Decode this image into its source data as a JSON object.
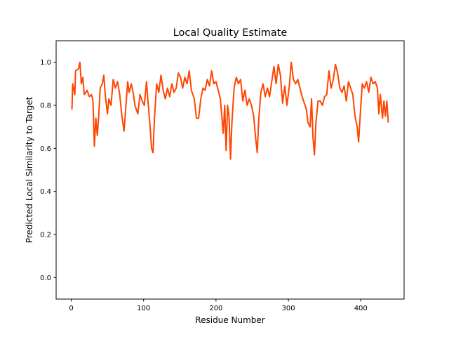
{
  "chart_data": {
    "type": "line",
    "title": "Local Quality Estimate",
    "x_label": "Residue Number",
    "y_label": "Predicted Local Similarity to Target",
    "xlim": [
      -20.85,
      459.85
    ],
    "ylim": [
      -0.1,
      1.1
    ],
    "xticks": [
      0,
      100,
      200,
      300,
      400
    ],
    "yticks": [
      {
        "value": 0,
        "label": "0.0"
      },
      {
        "value": 0.2,
        "label": "0.2"
      },
      {
        "value": 0.4,
        "label": "0.4"
      },
      {
        "value": 0.6,
        "label": "0.6"
      },
      {
        "value": 0.8,
        "label": "0.8"
      },
      {
        "value": 1,
        "label": "1.0"
      }
    ],
    "color": "#ff4500",
    "x": [
      1,
      2,
      5,
      6,
      10,
      12,
      14,
      16,
      18,
      22,
      25,
      28,
      30,
      32,
      34,
      36,
      38,
      40,
      43,
      45,
      47,
      50,
      52,
      55,
      58,
      61,
      64,
      67,
      70,
      73,
      75,
      78,
      80,
      83,
      86,
      88,
      92,
      95,
      98,
      101,
      104,
      106,
      109,
      111,
      113,
      115,
      118,
      121,
      124,
      127,
      130,
      133,
      136,
      139,
      142,
      145,
      148,
      151,
      154,
      157,
      160,
      163,
      166,
      170,
      173,
      176,
      179,
      182,
      185,
      188,
      191,
      194,
      197,
      200,
      203,
      206,
      208,
      210,
      212,
      214,
      216,
      218,
      220,
      222,
      225,
      228,
      231,
      234,
      237,
      240,
      243,
      246,
      249,
      252,
      255,
      257,
      259,
      262,
      265,
      268,
      271,
      274,
      277,
      280,
      283,
      286,
      289,
      292,
      295,
      298,
      301,
      304,
      307,
      310,
      313,
      316,
      319,
      322,
      325,
      327,
      330,
      332,
      334,
      336,
      338,
      341,
      344,
      347,
      350,
      353,
      356,
      359,
      362,
      365,
      368,
      371,
      374,
      377,
      380,
      383,
      386,
      389,
      392,
      395,
      397,
      399,
      402,
      405,
      408,
      411,
      414,
      417,
      420,
      423,
      425,
      427,
      430,
      432,
      434,
      436,
      438
    ],
    "values": [
      0.78,
      0.9,
      0.85,
      0.96,
      0.97,
      1.0,
      0.9,
      0.93,
      0.85,
      0.87,
      0.84,
      0.85,
      0.82,
      0.61,
      0.74,
      0.66,
      0.75,
      0.88,
      0.9,
      0.94,
      0.85,
      0.76,
      0.83,
      0.8,
      0.92,
      0.88,
      0.91,
      0.85,
      0.75,
      0.68,
      0.77,
      0.91,
      0.86,
      0.9,
      0.85,
      0.8,
      0.76,
      0.85,
      0.82,
      0.8,
      0.91,
      0.82,
      0.7,
      0.6,
      0.58,
      0.74,
      0.9,
      0.86,
      0.94,
      0.87,
      0.83,
      0.88,
      0.84,
      0.9,
      0.86,
      0.88,
      0.95,
      0.93,
      0.88,
      0.93,
      0.9,
      0.96,
      0.87,
      0.83,
      0.74,
      0.74,
      0.83,
      0.88,
      0.87,
      0.92,
      0.89,
      0.96,
      0.9,
      0.91,
      0.87,
      0.83,
      0.75,
      0.67,
      0.8,
      0.59,
      0.8,
      0.75,
      0.55,
      0.72,
      0.88,
      0.93,
      0.9,
      0.92,
      0.82,
      0.87,
      0.8,
      0.83,
      0.8,
      0.75,
      0.64,
      0.58,
      0.73,
      0.86,
      0.9,
      0.84,
      0.88,
      0.84,
      0.91,
      0.98,
      0.9,
      0.99,
      0.94,
      0.81,
      0.89,
      0.8,
      0.88,
      1.0,
      0.92,
      0.9,
      0.92,
      0.88,
      0.84,
      0.81,
      0.78,
      0.72,
      0.7,
      0.83,
      0.65,
      0.57,
      0.72,
      0.82,
      0.82,
      0.8,
      0.84,
      0.85,
      0.96,
      0.88,
      0.92,
      0.99,
      0.95,
      0.88,
      0.86,
      0.89,
      0.82,
      0.91,
      0.88,
      0.85,
      0.75,
      0.7,
      0.63,
      0.74,
      0.9,
      0.88,
      0.91,
      0.86,
      0.93,
      0.9,
      0.91,
      0.88,
      0.76,
      0.85,
      0.74,
      0.82,
      0.75,
      0.82,
      0.72
    ]
  }
}
